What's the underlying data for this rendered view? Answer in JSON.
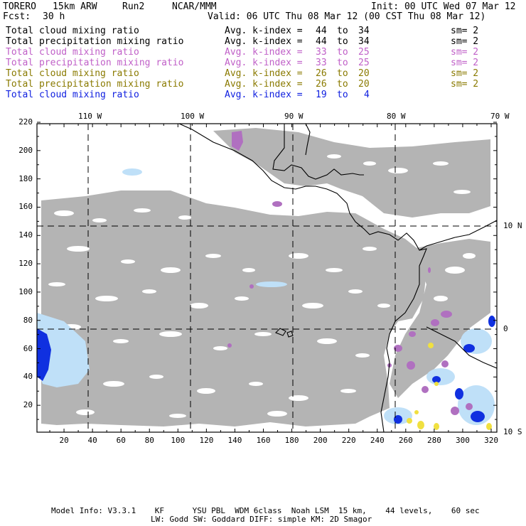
{
  "header": {
    "model": "TORERO",
    "config": "15km ARW",
    "run": "Run2",
    "org": "NCAR/MMM",
    "init": "Init: 00 UTC Wed 07 Mar 12",
    "fcst_label": "Fcst:",
    "fcst_value": "30 h",
    "valid": "Valid: 06 UTC Thu 08 Mar 12 (00 CST Thu 08 Mar 12)"
  },
  "legend": [
    {
      "field": "Total cloud mixing ratio",
      "avg": "Avg. k-index =",
      "k1": "44",
      "to": "to",
      "k2": "34",
      "sm": "sm= 2",
      "color": "#000000"
    },
    {
      "field": "Total precipitation mixing ratio",
      "avg": "Avg. k-index =",
      "k1": "44",
      "to": "to",
      "k2": "34",
      "sm": "sm= 2",
      "color": "#000000"
    },
    {
      "field": "Total cloud mixing ratio",
      "avg": "Avg. k-index =",
      "k1": "33",
      "to": "to",
      "k2": "25",
      "sm": "sm= 2",
      "color": "#c060c8"
    },
    {
      "field": "Total precipitation mixing ratio",
      "avg": "Avg. k-index =",
      "k1": "33",
      "to": "to",
      "k2": "25",
      "sm": "sm= 2",
      "color": "#c060c8"
    },
    {
      "field": "Total cloud mixing ratio",
      "avg": "Avg. k-index =",
      "k1": "26",
      "to": "to",
      "k2": "20",
      "sm": "sm= 2",
      "color": "#8a7a00"
    },
    {
      "field": "Total precipitation mixing ratio",
      "avg": "Avg. k-index =",
      "k1": "26",
      "to": "to",
      "k2": "20",
      "sm": "sm= 2",
      "color": "#8a7a00"
    },
    {
      "field": "Total cloud mixing ratio",
      "avg": "Avg. k-index =",
      "k1": "19",
      "to": "to",
      "k2": "4",
      "sm": "",
      "color": "#1020e0"
    }
  ],
  "map": {
    "lon_labels": [
      "110 W",
      "100 W",
      "90 W",
      "80 W",
      "70 W"
    ],
    "lat_labels": [
      "10 N",
      "0",
      "10 S"
    ],
    "x_ticks": [
      "20",
      "40",
      "60",
      "80",
      "100",
      "120",
      "140",
      "160",
      "180",
      "200",
      "220",
      "240",
      "260",
      "280",
      "300",
      "320"
    ],
    "y_ticks": [
      "20",
      "40",
      "60",
      "80",
      "100",
      "120",
      "140",
      "160",
      "180",
      "200",
      "220"
    ],
    "colors": {
      "cloud_gray": "#b4b4b4",
      "purple": "#b070c0",
      "light_blue": "#bfe0f8",
      "deep_blue": "#1030e0",
      "yellow": "#f0e040"
    }
  },
  "footer": {
    "line1": "Model Info: V3.3.1    KF      YSU PBL  WDM 6class  Noah LSM  15 km,    44 levels,    60 sec",
    "line2": "LW: Godd SW: Goddard DIFF: simple KM: 2D Smagor"
  }
}
